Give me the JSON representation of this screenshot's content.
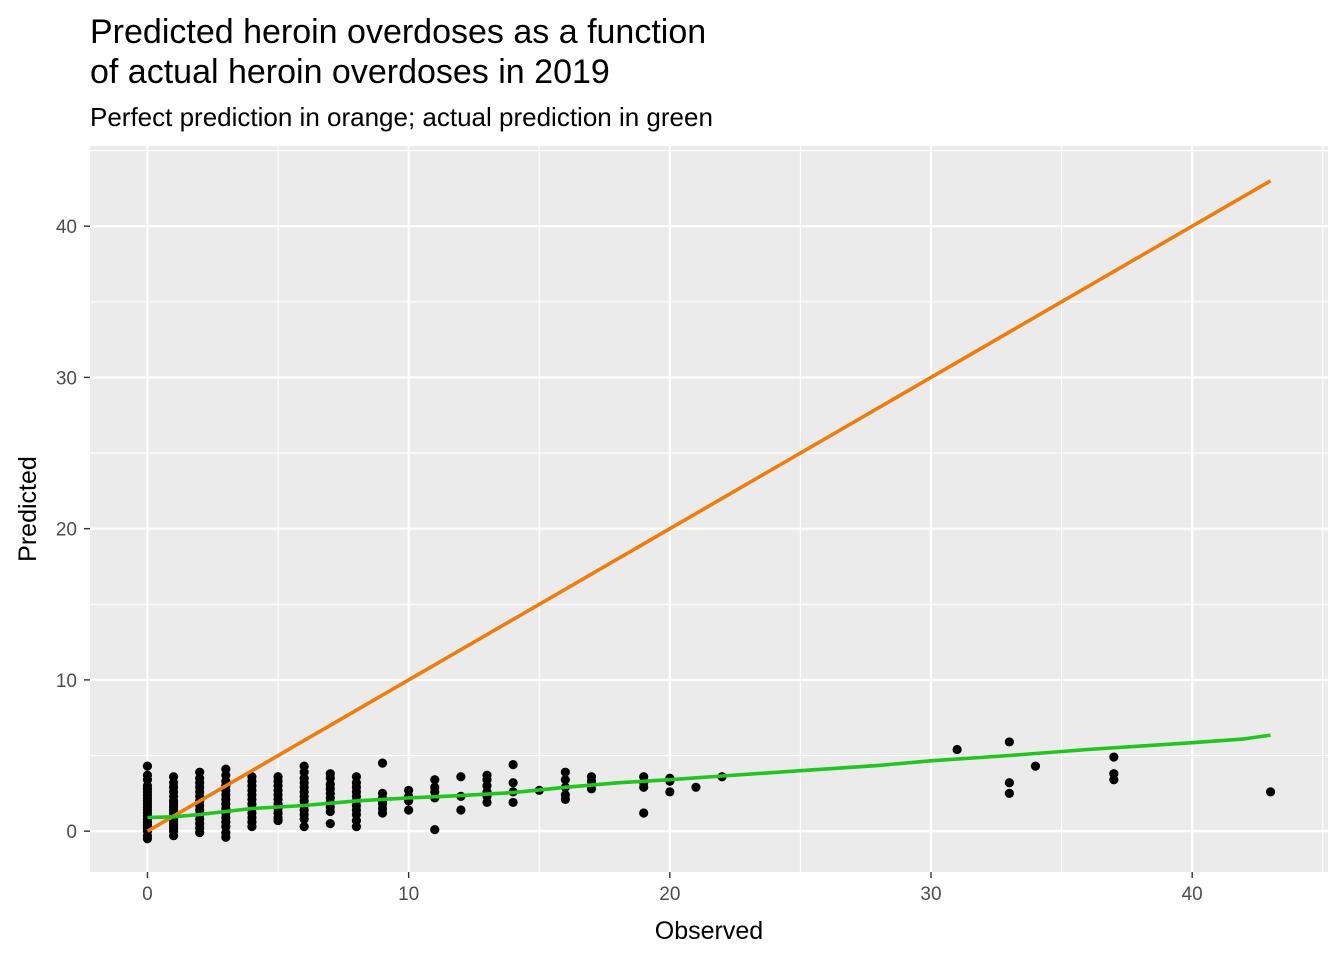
{
  "chart_data": {
    "type": "scatter",
    "title_lines": [
      "Predicted heroin overdoses as a function",
      "of actual heroin overdoses in 2019"
    ],
    "subtitle": "Perfect prediction in orange; actual prediction in green",
    "xlabel": "Observed",
    "ylabel": "Predicted",
    "xlim": [
      -2.2,
      45.2
    ],
    "ylim": [
      -2.7,
      45.3
    ],
    "x_ticks": [
      0,
      10,
      20,
      30,
      40
    ],
    "y_ticks": [
      0,
      10,
      20,
      30,
      40
    ],
    "grid": true,
    "background": "#ebebeb",
    "series": [
      {
        "kind": "points",
        "color": "#000000",
        "points": [
          [
            0,
            4.3
          ],
          [
            0,
            3.7
          ],
          [
            0,
            3.4
          ],
          [
            0,
            3.0
          ],
          [
            0,
            2.8
          ],
          [
            0,
            2.6
          ],
          [
            0,
            2.4
          ],
          [
            0,
            2.2
          ],
          [
            0,
            2.0
          ],
          [
            0,
            1.8
          ],
          [
            0,
            1.6
          ],
          [
            0,
            1.4
          ],
          [
            0,
            1.2
          ],
          [
            0,
            1.0
          ],
          [
            0,
            0.8
          ],
          [
            0,
            0.6
          ],
          [
            0,
            0.4
          ],
          [
            0,
            0.2
          ],
          [
            0,
            0.0
          ],
          [
            0,
            -0.3
          ],
          [
            0,
            -0.5
          ],
          [
            1,
            3.6
          ],
          [
            1,
            3.2
          ],
          [
            1,
            2.9
          ],
          [
            1,
            2.6
          ],
          [
            1,
            2.3
          ],
          [
            1,
            2.0
          ],
          [
            1,
            1.8
          ],
          [
            1,
            1.6
          ],
          [
            1,
            1.4
          ],
          [
            1,
            1.2
          ],
          [
            1,
            1.0
          ],
          [
            1,
            0.8
          ],
          [
            1,
            0.6
          ],
          [
            1,
            0.4
          ],
          [
            1,
            0.2
          ],
          [
            1,
            0.0
          ],
          [
            1,
            -0.3
          ],
          [
            2,
            3.9
          ],
          [
            2,
            3.5
          ],
          [
            2,
            3.2
          ],
          [
            2,
            2.9
          ],
          [
            2,
            2.6
          ],
          [
            2,
            2.3
          ],
          [
            2,
            2.0
          ],
          [
            2,
            1.7
          ],
          [
            2,
            1.4
          ],
          [
            2,
            1.1
          ],
          [
            2,
            0.8
          ],
          [
            2,
            0.5
          ],
          [
            2,
            0.2
          ],
          [
            2,
            -0.1
          ],
          [
            3,
            4.1
          ],
          [
            3,
            3.7
          ],
          [
            3,
            3.3
          ],
          [
            3,
            3.0
          ],
          [
            3,
            2.7
          ],
          [
            3,
            2.4
          ],
          [
            3,
            2.1
          ],
          [
            3,
            1.8
          ],
          [
            3,
            1.5
          ],
          [
            3,
            1.2
          ],
          [
            3,
            0.9
          ],
          [
            3,
            0.6
          ],
          [
            3,
            0.3
          ],
          [
            3,
            -0.1
          ],
          [
            3,
            -0.4
          ],
          [
            4,
            3.6
          ],
          [
            4,
            3.3
          ],
          [
            4,
            3.0
          ],
          [
            4,
            2.7
          ],
          [
            4,
            2.4
          ],
          [
            4,
            2.1
          ],
          [
            4,
            1.8
          ],
          [
            4,
            1.5
          ],
          [
            4,
            1.2
          ],
          [
            4,
            0.9
          ],
          [
            4,
            0.6
          ],
          [
            4,
            0.3
          ],
          [
            5,
            3.6
          ],
          [
            5,
            3.3
          ],
          [
            5,
            3.0
          ],
          [
            5,
            2.7
          ],
          [
            5,
            2.4
          ],
          [
            5,
            2.1
          ],
          [
            5,
            1.8
          ],
          [
            5,
            1.5
          ],
          [
            5,
            1.2
          ],
          [
            5,
            0.9
          ],
          [
            5,
            0.7
          ],
          [
            6,
            4.3
          ],
          [
            6,
            3.9
          ],
          [
            6,
            3.5
          ],
          [
            6,
            3.2
          ],
          [
            6,
            2.9
          ],
          [
            6,
            2.6
          ],
          [
            6,
            2.3
          ],
          [
            6,
            2.0
          ],
          [
            6,
            1.7
          ],
          [
            6,
            1.4
          ],
          [
            6,
            1.1
          ],
          [
            6,
            0.8
          ],
          [
            6,
            0.3
          ],
          [
            7,
            3.8
          ],
          [
            7,
            3.5
          ],
          [
            7,
            3.1
          ],
          [
            7,
            2.8
          ],
          [
            7,
            2.5
          ],
          [
            7,
            2.2
          ],
          [
            7,
            1.9
          ],
          [
            7,
            1.6
          ],
          [
            7,
            1.3
          ],
          [
            7,
            0.5
          ],
          [
            8,
            3.6
          ],
          [
            8,
            3.2
          ],
          [
            8,
            2.9
          ],
          [
            8,
            2.6
          ],
          [
            8,
            2.3
          ],
          [
            8,
            2.0
          ],
          [
            8,
            1.7
          ],
          [
            8,
            1.4
          ],
          [
            8,
            1.1
          ],
          [
            8,
            0.7
          ],
          [
            8,
            0.3
          ],
          [
            9,
            4.5
          ],
          [
            9,
            2.5
          ],
          [
            9,
            2.2
          ],
          [
            9,
            2.0
          ],
          [
            9,
            1.8
          ],
          [
            9,
            1.5
          ],
          [
            9,
            1.2
          ],
          [
            10,
            2.7
          ],
          [
            10,
            2.3
          ],
          [
            10,
            2.0
          ],
          [
            10,
            1.4
          ],
          [
            11,
            3.4
          ],
          [
            11,
            2.9
          ],
          [
            11,
            2.6
          ],
          [
            11,
            2.2
          ],
          [
            11,
            0.1
          ],
          [
            12,
            3.6
          ],
          [
            12,
            2.3
          ],
          [
            12,
            1.4
          ],
          [
            13,
            3.7
          ],
          [
            13,
            3.4
          ],
          [
            13,
            3.0
          ],
          [
            13,
            2.6
          ],
          [
            13,
            2.3
          ],
          [
            13,
            1.9
          ],
          [
            14,
            4.4
          ],
          [
            14,
            3.2
          ],
          [
            14,
            2.6
          ],
          [
            14,
            1.9
          ],
          [
            15,
            2.7
          ],
          [
            16,
            3.9
          ],
          [
            16,
            3.4
          ],
          [
            16,
            2.9
          ],
          [
            16,
            2.4
          ],
          [
            16,
            2.1
          ],
          [
            17,
            3.6
          ],
          [
            17,
            3.3
          ],
          [
            17,
            2.8
          ],
          [
            19,
            3.6
          ],
          [
            19,
            3.2
          ],
          [
            19,
            2.9
          ],
          [
            19,
            1.2
          ],
          [
            20,
            3.5
          ],
          [
            20,
            3.3
          ],
          [
            20,
            2.6
          ],
          [
            21,
            2.9
          ],
          [
            22,
            3.6
          ],
          [
            31,
            5.4
          ],
          [
            33,
            5.9
          ],
          [
            33,
            3.2
          ],
          [
            33,
            2.5
          ],
          [
            34,
            4.3
          ],
          [
            37,
            4.9
          ],
          [
            37,
            3.8
          ],
          [
            37,
            3.4
          ],
          [
            43,
            2.6
          ]
        ]
      },
      {
        "kind": "line",
        "color": "#f07c0c",
        "points": [
          [
            0,
            0
          ],
          [
            43,
            43
          ]
        ]
      },
      {
        "kind": "line",
        "color": "#22c41e",
        "points": [
          [
            0,
            0.9
          ],
          [
            1,
            0.95
          ],
          [
            2,
            1.1
          ],
          [
            3,
            1.3
          ],
          [
            4,
            1.5
          ],
          [
            5,
            1.6
          ],
          [
            6,
            1.7
          ],
          [
            7,
            1.85
          ],
          [
            8,
            2.0
          ],
          [
            9,
            2.1
          ],
          [
            10,
            2.2
          ],
          [
            12,
            2.35
          ],
          [
            14,
            2.55
          ],
          [
            16,
            2.9
          ],
          [
            18,
            3.2
          ],
          [
            20,
            3.4
          ],
          [
            22,
            3.65
          ],
          [
            25,
            4.0
          ],
          [
            28,
            4.35
          ],
          [
            30,
            4.65
          ],
          [
            33,
            5.0
          ],
          [
            36,
            5.4
          ],
          [
            40,
            5.85
          ],
          [
            42,
            6.1
          ],
          [
            43,
            6.35
          ]
        ]
      }
    ]
  }
}
